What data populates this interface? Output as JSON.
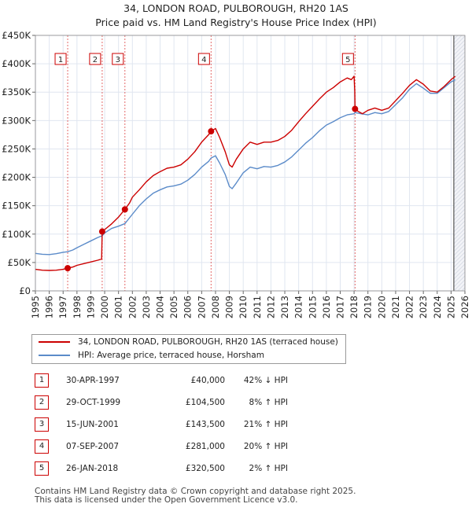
{
  "title": {
    "line1": "34, LONDON ROAD, PULBOROUGH, RH20 1AS",
    "line2": "Price paid vs. HM Land Registry's House Price Index (HPI)"
  },
  "colors": {
    "property": "#cc0000",
    "hpi": "#5b8bc9",
    "hatch": "#d9dde6",
    "grid": "#e0e6f0",
    "vline": "#dd4444",
    "plot_bg": "#ffffff"
  },
  "chart_data": {
    "type": "line",
    "xlim": [
      1995,
      2026
    ],
    "ylim": [
      0,
      450000
    ],
    "y_ticks": [
      {
        "value": 0,
        "label": "£0"
      },
      {
        "value": 50000,
        "label": "£50K"
      },
      {
        "value": 100000,
        "label": "£100K"
      },
      {
        "value": 150000,
        "label": "£150K"
      },
      {
        "value": 200000,
        "label": "£200K"
      },
      {
        "value": 250000,
        "label": "£250K"
      },
      {
        "value": 300000,
        "label": "£300K"
      },
      {
        "value": 350000,
        "label": "£350K"
      },
      {
        "value": 400000,
        "label": "£400K"
      },
      {
        "value": 450000,
        "label": "£450K"
      }
    ],
    "x_ticks": [
      1995,
      1996,
      1997,
      1998,
      1999,
      2000,
      2001,
      2002,
      2003,
      2004,
      2005,
      2006,
      2007,
      2008,
      2009,
      2010,
      2011,
      2012,
      2013,
      2014,
      2015,
      2016,
      2017,
      2018,
      2019,
      2020,
      2021,
      2022,
      2023,
      2024,
      2025,
      2026
    ],
    "hatch_from": 2025.2,
    "series": [
      {
        "name": "34, LONDON ROAD, PULBOROUGH, RH20 1AS (terraced house)",
        "color": "#cc0000",
        "points": [
          [
            1995.0,
            38000
          ],
          [
            1995.5,
            36500
          ],
          [
            1996.0,
            36000
          ],
          [
            1996.5,
            36500
          ],
          [
            1997.0,
            38000
          ],
          [
            1997.33,
            40000
          ],
          [
            1997.7,
            42000
          ],
          [
            1998.0,
            45000
          ],
          [
            1998.5,
            48000
          ],
          [
            1999.0,
            51000
          ],
          [
            1999.5,
            54000
          ],
          [
            1999.78,
            56000
          ],
          [
            1999.82,
            104500
          ],
          [
            2000.0,
            108000
          ],
          [
            2000.5,
            118000
          ],
          [
            2001.0,
            130000
          ],
          [
            2001.46,
            143500
          ],
          [
            2001.8,
            155000
          ],
          [
            2002.0,
            165000
          ],
          [
            2002.5,
            178000
          ],
          [
            2003.0,
            192000
          ],
          [
            2003.5,
            203000
          ],
          [
            2004.0,
            210000
          ],
          [
            2004.5,
            216000
          ],
          [
            2005.0,
            218000
          ],
          [
            2005.5,
            222000
          ],
          [
            2006.0,
            232000
          ],
          [
            2006.5,
            245000
          ],
          [
            2007.0,
            262000
          ],
          [
            2007.5,
            275000
          ],
          [
            2007.68,
            281000
          ],
          [
            2008.0,
            286000
          ],
          [
            2008.3,
            270000
          ],
          [
            2008.7,
            245000
          ],
          [
            2009.0,
            222000
          ],
          [
            2009.2,
            218000
          ],
          [
            2009.5,
            232000
          ],
          [
            2010.0,
            250000
          ],
          [
            2010.5,
            262000
          ],
          [
            2011.0,
            258000
          ],
          [
            2011.5,
            262000
          ],
          [
            2012.0,
            262000
          ],
          [
            2012.5,
            265000
          ],
          [
            2013.0,
            272000
          ],
          [
            2013.5,
            283000
          ],
          [
            2014.0,
            298000
          ],
          [
            2014.5,
            312000
          ],
          [
            2015.0,
            325000
          ],
          [
            2015.5,
            338000
          ],
          [
            2016.0,
            350000
          ],
          [
            2016.5,
            358000
          ],
          [
            2017.0,
            368000
          ],
          [
            2017.5,
            375000
          ],
          [
            2017.8,
            372000
          ],
          [
            2018.0,
            378000
          ],
          [
            2018.05,
            352000
          ],
          [
            2018.07,
            320500
          ],
          [
            2018.3,
            316000
          ],
          [
            2018.6,
            312000
          ],
          [
            2019.0,
            318000
          ],
          [
            2019.5,
            322000
          ],
          [
            2020.0,
            318000
          ],
          [
            2020.5,
            322000
          ],
          [
            2021.0,
            335000
          ],
          [
            2021.5,
            348000
          ],
          [
            2022.0,
            362000
          ],
          [
            2022.5,
            372000
          ],
          [
            2023.0,
            364000
          ],
          [
            2023.5,
            352000
          ],
          [
            2024.0,
            350000
          ],
          [
            2024.5,
            360000
          ],
          [
            2025.0,
            372000
          ],
          [
            2025.3,
            378000
          ]
        ]
      },
      {
        "name": "HPI: Average price, terraced house, Horsham",
        "color": "#5b8bc9",
        "points": [
          [
            1995.0,
            66000
          ],
          [
            1995.5,
            64500
          ],
          [
            1996.0,
            64000
          ],
          [
            1996.5,
            65500
          ],
          [
            1997.0,
            68000
          ],
          [
            1997.33,
            69000
          ],
          [
            1997.7,
            72000
          ],
          [
            1998.0,
            76000
          ],
          [
            1998.5,
            82000
          ],
          [
            1999.0,
            88000
          ],
          [
            1999.5,
            94000
          ],
          [
            1999.82,
            97000
          ],
          [
            2000.0,
            102000
          ],
          [
            2000.5,
            110000
          ],
          [
            2001.0,
            114000
          ],
          [
            2001.46,
            118500
          ],
          [
            2002.0,
            135000
          ],
          [
            2002.5,
            150000
          ],
          [
            2003.0,
            162000
          ],
          [
            2003.5,
            172000
          ],
          [
            2004.0,
            178000
          ],
          [
            2004.5,
            183000
          ],
          [
            2005.0,
            185000
          ],
          [
            2005.5,
            188000
          ],
          [
            2006.0,
            195000
          ],
          [
            2006.5,
            205000
          ],
          [
            2007.0,
            218000
          ],
          [
            2007.5,
            228000
          ],
          [
            2007.68,
            234000
          ],
          [
            2008.0,
            238000
          ],
          [
            2008.3,
            225000
          ],
          [
            2008.7,
            205000
          ],
          [
            2009.0,
            184000
          ],
          [
            2009.2,
            180000
          ],
          [
            2009.5,
            190000
          ],
          [
            2010.0,
            208000
          ],
          [
            2010.5,
            218000
          ],
          [
            2011.0,
            215000
          ],
          [
            2011.5,
            219000
          ],
          [
            2012.0,
            218000
          ],
          [
            2012.5,
            221000
          ],
          [
            2013.0,
            227000
          ],
          [
            2013.5,
            236000
          ],
          [
            2014.0,
            248000
          ],
          [
            2014.5,
            260000
          ],
          [
            2015.0,
            270000
          ],
          [
            2015.5,
            282000
          ],
          [
            2016.0,
            292000
          ],
          [
            2016.5,
            298000
          ],
          [
            2017.0,
            305000
          ],
          [
            2017.5,
            310000
          ],
          [
            2018.0,
            312000
          ],
          [
            2018.07,
            314000
          ],
          [
            2018.5,
            312000
          ],
          [
            2019.0,
            310000
          ],
          [
            2019.5,
            314000
          ],
          [
            2020.0,
            312000
          ],
          [
            2020.5,
            316000
          ],
          [
            2021.0,
            328000
          ],
          [
            2021.5,
            340000
          ],
          [
            2022.0,
            355000
          ],
          [
            2022.5,
            365000
          ],
          [
            2023.0,
            357000
          ],
          [
            2023.5,
            348000
          ],
          [
            2024.0,
            348000
          ],
          [
            2024.5,
            358000
          ],
          [
            2025.0,
            368000
          ],
          [
            2025.3,
            372000
          ]
        ]
      }
    ],
    "sale_markers": [
      {
        "n": "1",
        "x": 1997.33,
        "y": 40000
      },
      {
        "n": "2",
        "x": 1999.82,
        "y": 104500
      },
      {
        "n": "3",
        "x": 2001.46,
        "y": 143500
      },
      {
        "n": "4",
        "x": 2007.68,
        "y": 281000
      },
      {
        "n": "5",
        "x": 2018.07,
        "y": 320500
      }
    ]
  },
  "legend": {
    "property_label": "34, LONDON ROAD, PULBOROUGH, RH20 1AS (terraced house)",
    "hpi_label": "HPI: Average price, terraced house, Horsham"
  },
  "sales": [
    {
      "n": "1",
      "date": "30-APR-1997",
      "price": "£40,000",
      "hpi": "42% ↓ HPI"
    },
    {
      "n": "2",
      "date": "29-OCT-1999",
      "price": "£104,500",
      "hpi": "8% ↑ HPI"
    },
    {
      "n": "3",
      "date": "15-JUN-2001",
      "price": "£143,500",
      "hpi": "21% ↑ HPI"
    },
    {
      "n": "4",
      "date": "07-SEP-2007",
      "price": "£281,000",
      "hpi": "20% ↑ HPI"
    },
    {
      "n": "5",
      "date": "26-JAN-2018",
      "price": "£320,500",
      "hpi": "2% ↑ HPI"
    }
  ],
  "footer": {
    "line1": "Contains HM Land Registry data © Crown copyright and database right 2025.",
    "line2": "This data is licensed under the Open Government Licence v3.0."
  }
}
